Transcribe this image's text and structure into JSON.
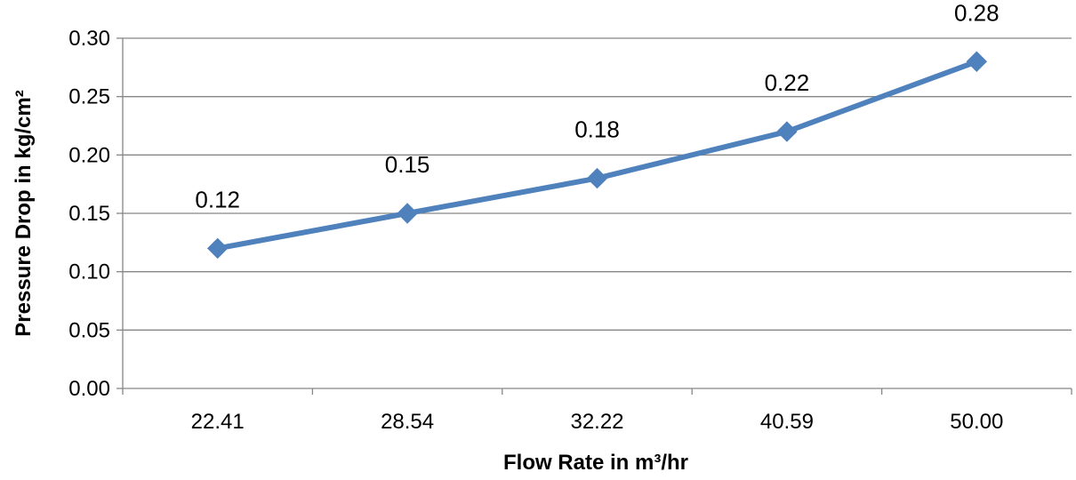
{
  "chart_data": {
    "type": "line",
    "title": "",
    "xlabel": "Flow Rate in m³/hr",
    "ylabel": "Pressure Drop in kg/cm²",
    "categories": [
      "22.41",
      "28.54",
      "32.22",
      "40.59",
      "50.00"
    ],
    "series": [
      {
        "values": [
          0.12,
          0.15,
          0.18,
          0.22,
          0.28
        ]
      }
    ],
    "data_labels": [
      "0.12",
      "0.15",
      "0.18",
      "0.22",
      "0.28"
    ],
    "y_ticks": [
      "0.00",
      "0.05",
      "0.10",
      "0.15",
      "0.20",
      "0.25",
      "0.30"
    ],
    "ylim": [
      0,
      0.3
    ],
    "grid": true,
    "legend": "none",
    "marker": "diamond",
    "colors": {
      "series": "#4F81BD",
      "grid": "#868686",
      "axis": "#868686"
    }
  }
}
